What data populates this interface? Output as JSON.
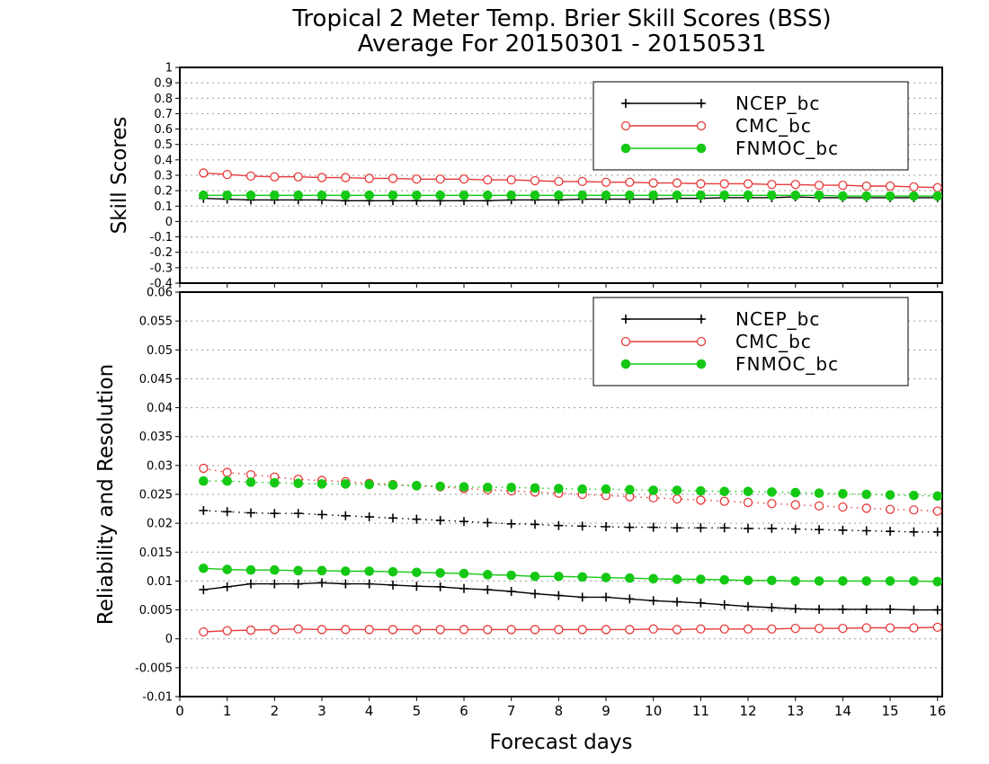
{
  "title_line1": "Tropical 2 Meter Temp. Brier Skill Scores (BSS)",
  "title_line2": "Average For 20150301 - 20150531",
  "xlabel": "Forecast days",
  "colors": {
    "NCEP_bc": "#000000",
    "CMC_bc": "#e83a3a",
    "FNMOC_bc": "#14c814",
    "grid": "#9a9a9a"
  },
  "chart_data": [
    {
      "type": "line",
      "panel": "top",
      "ylabel": "Skill Scores",
      "ylim": [
        -0.4,
        1
      ],
      "xlim": [
        0,
        16.1
      ],
      "grid": true,
      "legend_position": "top-right",
      "x_ticks": [
        0,
        1,
        2,
        3,
        4,
        5,
        6,
        7,
        8,
        9,
        10,
        11,
        12,
        13,
        14,
        15,
        16
      ],
      "y_ticks": [
        -0.4,
        -0.3,
        -0.2,
        -0.1,
        0,
        0.1,
        0.2,
        0.3,
        0.4,
        0.5,
        0.6,
        0.7,
        0.8,
        0.9,
        1
      ],
      "y_tick_labels": [
        "-0.4",
        "-0.3",
        "-0.2",
        "-0.1",
        "0",
        "0.1",
        "0.2",
        "0.3",
        "0.4",
        "0.5",
        "0.6",
        "0.7",
        "0.8",
        "0.9",
        "1"
      ],
      "x": [
        0.5,
        1,
        1.5,
        2,
        2.5,
        3,
        3.5,
        4,
        4.5,
        5,
        5.5,
        6,
        6.5,
        7,
        7.5,
        8,
        8.5,
        9,
        9.5,
        10,
        10.5,
        11,
        11.5,
        12,
        12.5,
        13,
        13.5,
        14,
        14.5,
        15,
        15.5,
        16
      ],
      "series": [
        {
          "name": "NCEP_bc",
          "marker": "plus",
          "line": "solid",
          "values": [
            0.15,
            0.145,
            0.14,
            0.14,
            0.14,
            0.14,
            0.135,
            0.135,
            0.135,
            0.135,
            0.135,
            0.135,
            0.135,
            0.14,
            0.14,
            0.14,
            0.145,
            0.145,
            0.145,
            0.145,
            0.15,
            0.15,
            0.155,
            0.155,
            0.155,
            0.16,
            0.155,
            0.155,
            0.155,
            0.155,
            0.155,
            0.155
          ]
        },
        {
          "name": "CMC_bc",
          "marker": "open-circle",
          "line": "solid",
          "values": [
            0.315,
            0.305,
            0.295,
            0.29,
            0.29,
            0.285,
            0.285,
            0.28,
            0.28,
            0.275,
            0.275,
            0.275,
            0.27,
            0.27,
            0.265,
            0.26,
            0.26,
            0.255,
            0.255,
            0.25,
            0.25,
            0.245,
            0.245,
            0.245,
            0.24,
            0.24,
            0.235,
            0.235,
            0.23,
            0.23,
            0.225,
            0.22
          ]
        },
        {
          "name": "FNMOC_bc",
          "marker": "filled-circle",
          "line": "solid",
          "values": [
            0.17,
            0.17,
            0.17,
            0.17,
            0.17,
            0.17,
            0.17,
            0.17,
            0.17,
            0.17,
            0.17,
            0.17,
            0.17,
            0.17,
            0.17,
            0.17,
            0.17,
            0.17,
            0.17,
            0.17,
            0.17,
            0.17,
            0.17,
            0.17,
            0.17,
            0.17,
            0.17,
            0.165,
            0.165,
            0.165,
            0.165,
            0.165
          ]
        }
      ]
    },
    {
      "type": "line",
      "panel": "bottom",
      "ylabel": "Reliability and Resolution",
      "ylim": [
        -0.01,
        0.06
      ],
      "xlim": [
        0,
        16.1
      ],
      "grid": true,
      "legend_position": "top-right",
      "x_ticks": [
        0,
        1,
        2,
        3,
        4,
        5,
        6,
        7,
        8,
        9,
        10,
        11,
        12,
        13,
        14,
        15,
        16
      ],
      "y_ticks": [
        -0.01,
        -0.005,
        0,
        0.005,
        0.01,
        0.015,
        0.02,
        0.025,
        0.03,
        0.035,
        0.04,
        0.045,
        0.05,
        0.055,
        0.06
      ],
      "y_tick_labels": [
        "-0.01",
        "-0.005",
        "0",
        "0.005",
        "0.01",
        "0.015",
        "0.02",
        "0.025",
        "0.03",
        "0.035",
        "0.04",
        "0.045",
        "0.05",
        "0.055",
        "0.06"
      ],
      "x": [
        0.5,
        1,
        1.5,
        2,
        2.5,
        3,
        3.5,
        4,
        4.5,
        5,
        5.5,
        6,
        6.5,
        7,
        7.5,
        8,
        8.5,
        9,
        9.5,
        10,
        10.5,
        11,
        11.5,
        12,
        12.5,
        13,
        13.5,
        14,
        14.5,
        15,
        15.5,
        16
      ],
      "series": [
        {
          "name": "NCEP_bc",
          "marker": "plus",
          "line": "solid",
          "values": [
            0.0085,
            0.009,
            0.0095,
            0.0095,
            0.0095,
            0.0097,
            0.0095,
            0.0095,
            0.0093,
            0.0091,
            0.009,
            0.0087,
            0.0085,
            0.0082,
            0.0078,
            0.0075,
            0.0072,
            0.0072,
            0.0069,
            0.0066,
            0.0064,
            0.0062,
            0.0059,
            0.0056,
            0.0054,
            0.0052,
            0.0051,
            0.0051,
            0.0051,
            0.0051,
            0.005,
            0.005
          ]
        },
        {
          "name": "CMC_bc",
          "marker": "open-circle",
          "line": "solid",
          "values": [
            0.0012,
            0.0014,
            0.0015,
            0.0016,
            0.0017,
            0.0016,
            0.0016,
            0.0016,
            0.0016,
            0.0016,
            0.0016,
            0.0016,
            0.0016,
            0.0016,
            0.0016,
            0.0016,
            0.0016,
            0.0016,
            0.0016,
            0.0017,
            0.0016,
            0.0017,
            0.0017,
            0.0017,
            0.0017,
            0.0018,
            0.0018,
            0.0018,
            0.0019,
            0.0019,
            0.0019,
            0.002
          ]
        },
        {
          "name": "FNMOC_bc",
          "marker": "filled-circle",
          "line": "solid",
          "values": [
            0.0122,
            0.012,
            0.0119,
            0.0119,
            0.0118,
            0.0118,
            0.0117,
            0.0117,
            0.0116,
            0.0115,
            0.0114,
            0.0113,
            0.0111,
            0.011,
            0.0108,
            0.0108,
            0.0107,
            0.0106,
            0.0105,
            0.0104,
            0.0103,
            0.0103,
            0.0102,
            0.0101,
            0.0101,
            0.01,
            0.01,
            0.01,
            0.01,
            0.01,
            0.01,
            0.0099
          ]
        },
        {
          "name": "NCEP_bc",
          "marker": "plus",
          "line": "dotted",
          "values": [
            0.0222,
            0.022,
            0.0218,
            0.0217,
            0.0217,
            0.0215,
            0.0213,
            0.0211,
            0.0209,
            0.0207,
            0.0205,
            0.0203,
            0.0201,
            0.0199,
            0.0198,
            0.0196,
            0.0195,
            0.0194,
            0.0193,
            0.0193,
            0.0192,
            0.0192,
            0.0192,
            0.0191,
            0.0191,
            0.019,
            0.0189,
            0.0188,
            0.0187,
            0.0186,
            0.0185,
            0.0185
          ]
        },
        {
          "name": "CMC_bc",
          "marker": "open-circle",
          "line": "dotted",
          "values": [
            0.0295,
            0.0288,
            0.0284,
            0.028,
            0.0276,
            0.0274,
            0.0272,
            0.0269,
            0.0267,
            0.0265,
            0.0263,
            0.026,
            0.0258,
            0.0256,
            0.0254,
            0.0252,
            0.025,
            0.0248,
            0.0246,
            0.0244,
            0.0242,
            0.024,
            0.0238,
            0.0236,
            0.0234,
            0.0232,
            0.023,
            0.0228,
            0.0226,
            0.0224,
            0.0223,
            0.0221
          ]
        },
        {
          "name": "FNMOC_bc",
          "marker": "filled-circle",
          "line": "dotted",
          "values": [
            0.0273,
            0.0273,
            0.0271,
            0.027,
            0.0269,
            0.0268,
            0.0268,
            0.0267,
            0.0266,
            0.0265,
            0.0264,
            0.0263,
            0.0262,
            0.0262,
            0.0261,
            0.026,
            0.0259,
            0.0259,
            0.0258,
            0.0257,
            0.0257,
            0.0256,
            0.0255,
            0.0255,
            0.0254,
            0.0253,
            0.0252,
            0.0251,
            0.025,
            0.0249,
            0.0248,
            0.0247
          ]
        }
      ]
    }
  ],
  "legend": [
    {
      "name": "NCEP_bc",
      "marker": "plus"
    },
    {
      "name": "CMC_bc",
      "marker": "open-circle"
    },
    {
      "name": "FNMOC_bc",
      "marker": "filled-circle"
    }
  ]
}
